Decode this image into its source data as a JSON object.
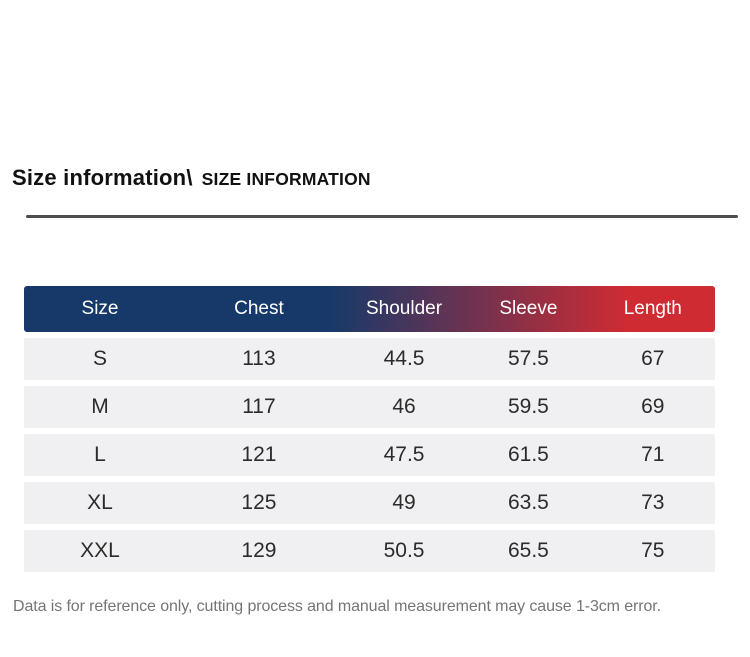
{
  "header": {
    "title_primary": "Size information\\",
    "title_secondary": "SIZE INFORMATION"
  },
  "size_table": {
    "columns": [
      "Size",
      "Chest",
      "Shoulder",
      "Sleeve",
      "Length"
    ],
    "rows": [
      [
        "S",
        "113",
        "44.5",
        "57.5",
        "67"
      ],
      [
        "M",
        "117",
        "46",
        "59.5",
        "69"
      ],
      [
        "L",
        "121",
        "47.5",
        "61.5",
        "71"
      ],
      [
        "XL",
        "125",
        "49",
        "63.5",
        "73"
      ],
      [
        "XXL",
        "129",
        "50.5",
        "65.5",
        "75"
      ]
    ]
  },
  "footer": {
    "note": "Data is for reference only, cutting process and manual measurement may cause 1-3cm error."
  },
  "colors": {
    "header_gradient_start": "#16396a",
    "header_gradient_end": "#ce2b33",
    "header_text": "#ffffff",
    "row_background": "#f0f0f2",
    "row_text": "#2b2b2b",
    "title_text": "#111111",
    "footer_text": "#757575",
    "divider": "#4c4c4c"
  }
}
